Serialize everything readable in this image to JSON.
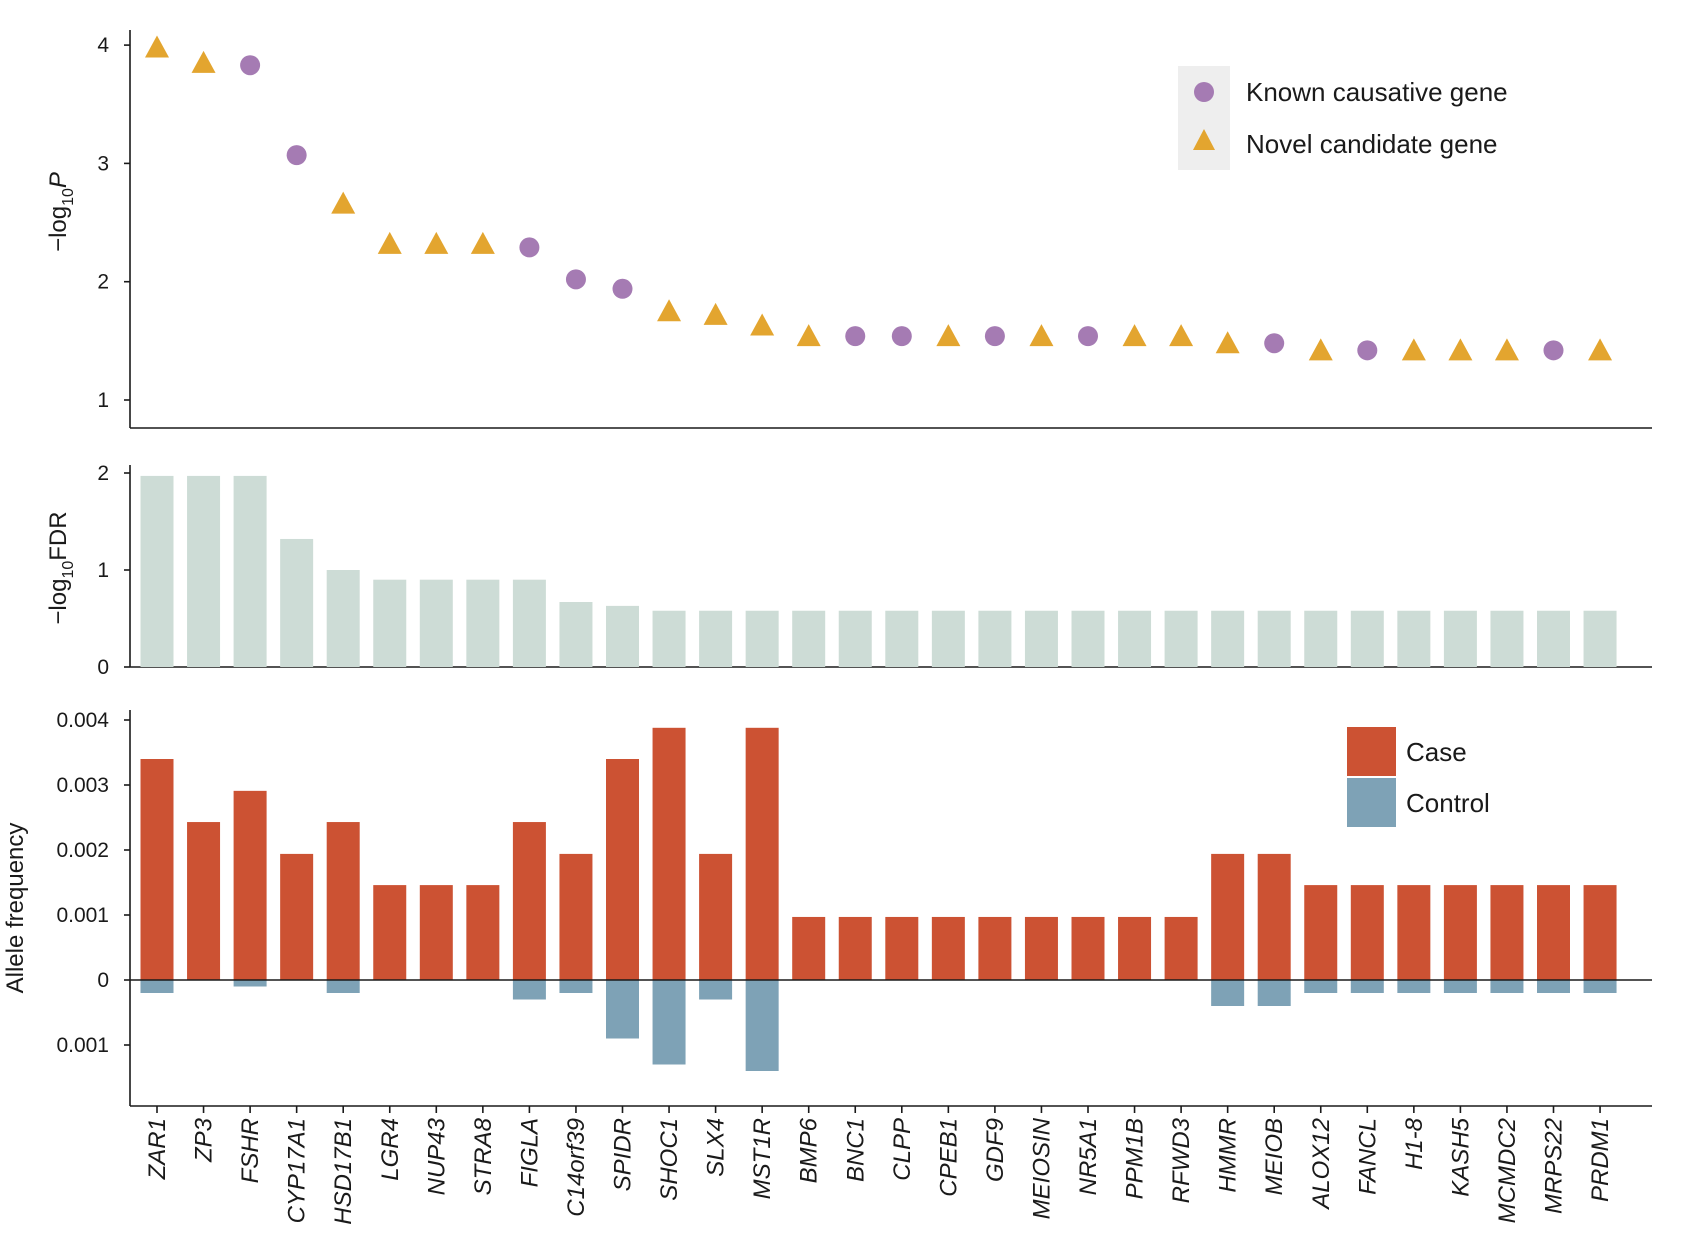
{
  "colors": {
    "known": "#a57bb3",
    "novel": "#e3a52f",
    "fdr_bar": "#cddcd6",
    "case": "#cc5233",
    "control": "#7ea2b6",
    "legend_bg": "#eeeeee",
    "axis": "#1a1a1a"
  },
  "chart_data": [
    {
      "panel": "p-value",
      "type": "scatter",
      "ylabel": "−log10P",
      "ylabel_main": "−log",
      "ylabel_sub": "10",
      "ylabel_italic": "P",
      "ylim": [
        0.85,
        4.15
      ],
      "yticks": [
        1,
        2,
        3,
        4
      ],
      "legend": {
        "placement": "top-right",
        "known_label": "Known causative gene",
        "novel_label": "Novel candidate gene"
      },
      "points": [
        {
          "gene": "ZAR1",
          "value": 3.98,
          "kind": "novel"
        },
        {
          "gene": "ZP3",
          "value": 3.85,
          "kind": "novel"
        },
        {
          "gene": "FSHR",
          "value": 3.83,
          "kind": "known"
        },
        {
          "gene": "CYP17A1",
          "value": 3.07,
          "kind": "known"
        },
        {
          "gene": "HSD17B1",
          "value": 2.66,
          "kind": "novel"
        },
        {
          "gene": "LGR4",
          "value": 2.32,
          "kind": "novel"
        },
        {
          "gene": "NUP43",
          "value": 2.32,
          "kind": "novel"
        },
        {
          "gene": "STRA8",
          "value": 2.32,
          "kind": "novel"
        },
        {
          "gene": "FIGLA",
          "value": 2.29,
          "kind": "known"
        },
        {
          "gene": "C14orf39",
          "value": 2.02,
          "kind": "known"
        },
        {
          "gene": "SPIDR",
          "value": 1.94,
          "kind": "known"
        },
        {
          "gene": "SHOC1",
          "value": 1.75,
          "kind": "novel"
        },
        {
          "gene": "SLX4",
          "value": 1.72,
          "kind": "novel"
        },
        {
          "gene": "MST1R",
          "value": 1.63,
          "kind": "novel"
        },
        {
          "gene": "BMP6",
          "value": 1.54,
          "kind": "novel"
        },
        {
          "gene": "BNC1",
          "value": 1.54,
          "kind": "known"
        },
        {
          "gene": "CLPP",
          "value": 1.54,
          "kind": "known"
        },
        {
          "gene": "CPEB1",
          "value": 1.54,
          "kind": "novel"
        },
        {
          "gene": "GDF9",
          "value": 1.54,
          "kind": "known"
        },
        {
          "gene": "MEIOSIN",
          "value": 1.54,
          "kind": "novel"
        },
        {
          "gene": "NR5A1",
          "value": 1.54,
          "kind": "known"
        },
        {
          "gene": "PPM1B",
          "value": 1.54,
          "kind": "novel"
        },
        {
          "gene": "RFWD3",
          "value": 1.54,
          "kind": "novel"
        },
        {
          "gene": "HMMR",
          "value": 1.48,
          "kind": "novel"
        },
        {
          "gene": "MEIOB",
          "value": 1.48,
          "kind": "known"
        },
        {
          "gene": "ALOX12",
          "value": 1.42,
          "kind": "novel"
        },
        {
          "gene": "FANCL",
          "value": 1.42,
          "kind": "known"
        },
        {
          "gene": "H1-8",
          "value": 1.42,
          "kind": "novel"
        },
        {
          "gene": "KASH5",
          "value": 1.42,
          "kind": "novel"
        },
        {
          "gene": "MCMDC2",
          "value": 1.42,
          "kind": "novel"
        },
        {
          "gene": "MRPS22",
          "value": 1.42,
          "kind": "known"
        },
        {
          "gene": "PRDM1",
          "value": 1.42,
          "kind": "novel"
        }
      ]
    },
    {
      "panel": "fdr",
      "type": "bar",
      "ylabel": "−log10FDR",
      "ylabel_main": "−log",
      "ylabel_sub": "10",
      "ylabel_tail": "FDR",
      "ylim": [
        0,
        2
      ],
      "yticks": [
        0,
        1,
        2
      ],
      "values": [
        1.97,
        1.97,
        1.97,
        1.32,
        1.0,
        0.9,
        0.9,
        0.9,
        0.9,
        0.67,
        0.63,
        0.58,
        0.58,
        0.58,
        0.58,
        0.58,
        0.58,
        0.58,
        0.58,
        0.58,
        0.58,
        0.58,
        0.58,
        0.58,
        0.58,
        0.58,
        0.58,
        0.58,
        0.58,
        0.58,
        0.58,
        0.58
      ]
    },
    {
      "panel": "allele-frequency",
      "type": "bar",
      "ylabel": "Allele frequency",
      "ylim": [
        -0.00177,
        0.00425
      ],
      "yticks": [
        {
          "value": 0.004,
          "label": "0.004"
        },
        {
          "value": 0.003,
          "label": "0.003"
        },
        {
          "value": 0.002,
          "label": "0.002"
        },
        {
          "value": 0.001,
          "label": "0.001"
        },
        {
          "value": 0,
          "label": "0"
        },
        {
          "value": -0.001,
          "label": "0.001"
        }
      ],
      "legend": {
        "placement": "top-right",
        "case_label": "Case",
        "control_label": "Control"
      },
      "categories": [
        "ZAR1",
        "ZP3",
        "FSHR",
        "CYP17A1",
        "HSD17B1",
        "LGR4",
        "NUP43",
        "STRA8",
        "FIGLA",
        "C14orf39",
        "SPIDR",
        "SHOC1",
        "SLX4",
        "MST1R",
        "BMP6",
        "BNC1",
        "CLPP",
        "CPEB1",
        "GDF9",
        "MEIOSIN",
        "NR5A1",
        "PPM1B",
        "RFWD3",
        "HMMR",
        "MEIOB",
        "ALOX12",
        "FANCL",
        "H1-8",
        "KASH5",
        "MCMDC2",
        "MRPS22",
        "PRDM1"
      ],
      "series": [
        {
          "name": "Case",
          "values": [
            0.0034,
            0.00243,
            0.00291,
            0.00194,
            0.00243,
            0.00146,
            0.00146,
            0.00146,
            0.00243,
            0.00194,
            0.0034,
            0.00388,
            0.00194,
            0.00388,
            0.00097,
            0.00097,
            0.00097,
            0.00097,
            0.00097,
            0.00097,
            0.00097,
            0.00097,
            0.00097,
            0.00194,
            0.00194,
            0.00146,
            0.00146,
            0.00146,
            0.00146,
            0.00146,
            0.00146,
            0.00146
          ]
        },
        {
          "name": "Control",
          "values": [
            0.0002,
            0.0,
            0.0001,
            0.0,
            0.0002,
            0.0,
            0.0,
            0.0,
            0.0003,
            0.0002,
            0.0009,
            0.0013,
            0.0003,
            0.0014,
            0.0,
            0.0,
            0.0,
            0.0,
            0.0,
            0.0,
            0.0,
            0.0,
            0.0,
            0.0004,
            0.0004,
            0.0002,
            0.0002,
            0.0002,
            0.0002,
            0.0002,
            0.0002,
            0.0002
          ]
        }
      ]
    }
  ]
}
